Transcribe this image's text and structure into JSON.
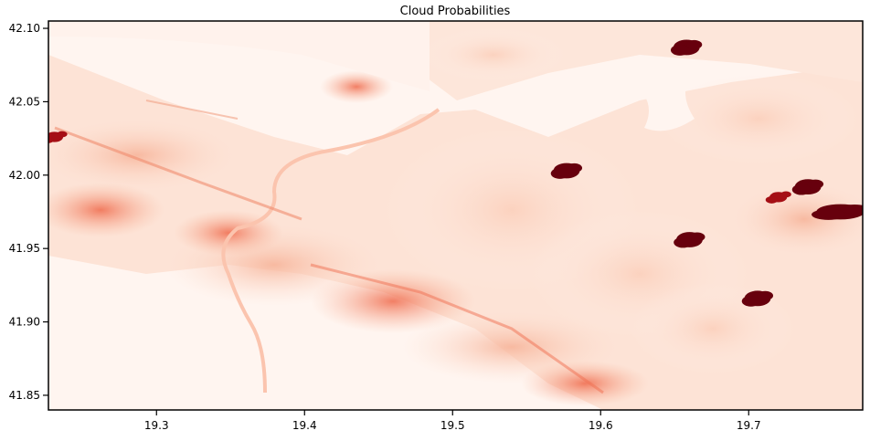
{
  "chart_data": {
    "type": "heatmap",
    "title": "Cloud Probabilities",
    "xlabel": "",
    "ylabel": "",
    "colormap": "Reds",
    "xlim": [
      19.227,
      19.777
    ],
    "ylim": [
      41.84,
      42.105
    ],
    "x_ticks": [
      "19.3",
      "19.4",
      "19.5",
      "19.6",
      "19.7"
    ],
    "y_ticks": [
      "42.10",
      "42.05",
      "42.00",
      "41.95",
      "41.90",
      "41.85"
    ],
    "x_tick_values": [
      19.3,
      19.4,
      19.5,
      19.6,
      19.7
    ],
    "y_tick_values": [
      42.1,
      42.05,
      42.0,
      41.95,
      41.9,
      41.85
    ],
    "grid": false,
    "high_probability_regions": [
      {
        "lon": 19.577,
        "lat": 42.003,
        "value": 1.0
      },
      {
        "lon": 19.658,
        "lat": 42.087,
        "value": 1.0
      },
      {
        "lon": 19.74,
        "lat": 41.992,
        "value": 1.0
      },
      {
        "lon": 19.762,
        "lat": 41.975,
        "value": 1.0
      },
      {
        "lon": 19.66,
        "lat": 41.956,
        "value": 1.0
      },
      {
        "lon": 19.706,
        "lat": 41.916,
        "value": 1.0
      },
      {
        "lon": 19.231,
        "lat": 42.026,
        "value": 0.95
      },
      {
        "lon": 19.72,
        "lat": 41.985,
        "value": 0.9
      }
    ]
  }
}
